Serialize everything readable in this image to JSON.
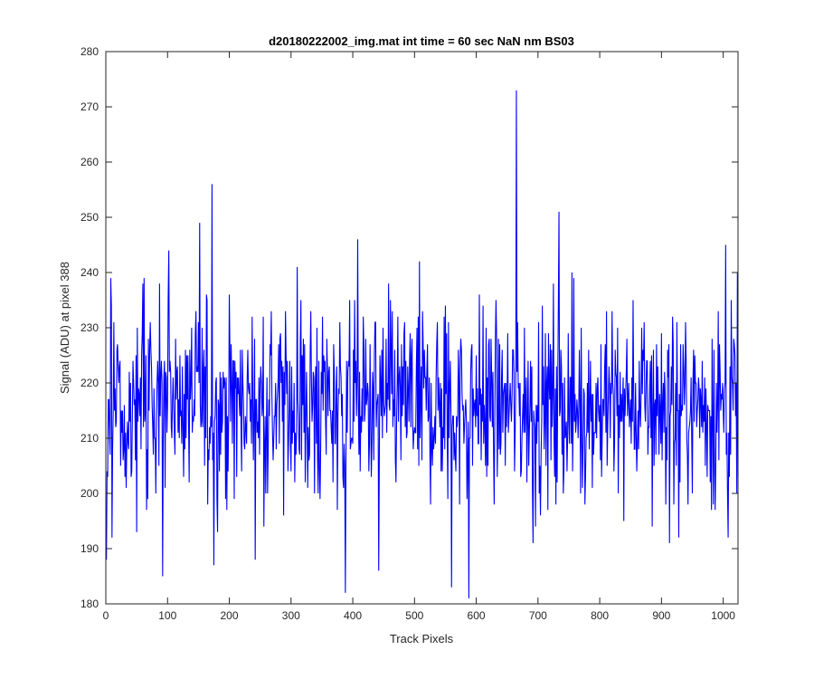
{
  "chart_data": {
    "type": "line",
    "title": "d20180222002_img.mat int time = 60 sec  NaN nm BS03",
    "xlabel": "Track Pixels",
    "ylabel": "Signal (ADU) at pixel 388",
    "xlim": [
      0,
      1024
    ],
    "ylim": [
      180,
      280
    ],
    "xticks": [
      0,
      100,
      200,
      300,
      400,
      500,
      600,
      700,
      800,
      900,
      1000
    ],
    "yticks": [
      180,
      190,
      200,
      210,
      220,
      230,
      240,
      250,
      260,
      270,
      280
    ],
    "grid": false,
    "legend": "none",
    "line_color": "#0000ff",
    "series": [
      {
        "points": 1024,
        "x_start": 1,
        "x_step": 1,
        "baseline": 216,
        "noise_sd": 9,
        "min": 181,
        "max": 273,
        "notable_points": [
          {
            "x": 1,
            "y": 188
          },
          {
            "x": 8,
            "y": 239
          },
          {
            "x": 10,
            "y": 192
          },
          {
            "x": 62,
            "y": 239
          },
          {
            "x": 92,
            "y": 185
          },
          {
            "x": 102,
            "y": 244
          },
          {
            "x": 152,
            "y": 249
          },
          {
            "x": 172,
            "y": 256
          },
          {
            "x": 175,
            "y": 187
          },
          {
            "x": 310,
            "y": 241
          },
          {
            "x": 388,
            "y": 182
          },
          {
            "x": 408,
            "y": 246
          },
          {
            "x": 442,
            "y": 186
          },
          {
            "x": 560,
            "y": 183
          },
          {
            "x": 588,
            "y": 181
          },
          {
            "x": 665,
            "y": 273
          },
          {
            "x": 692,
            "y": 191
          },
          {
            "x": 734,
            "y": 251
          },
          {
            "x": 928,
            "y": 192
          },
          {
            "x": 1004,
            "y": 245
          },
          {
            "x": 1008,
            "y": 192
          }
        ]
      }
    ]
  }
}
